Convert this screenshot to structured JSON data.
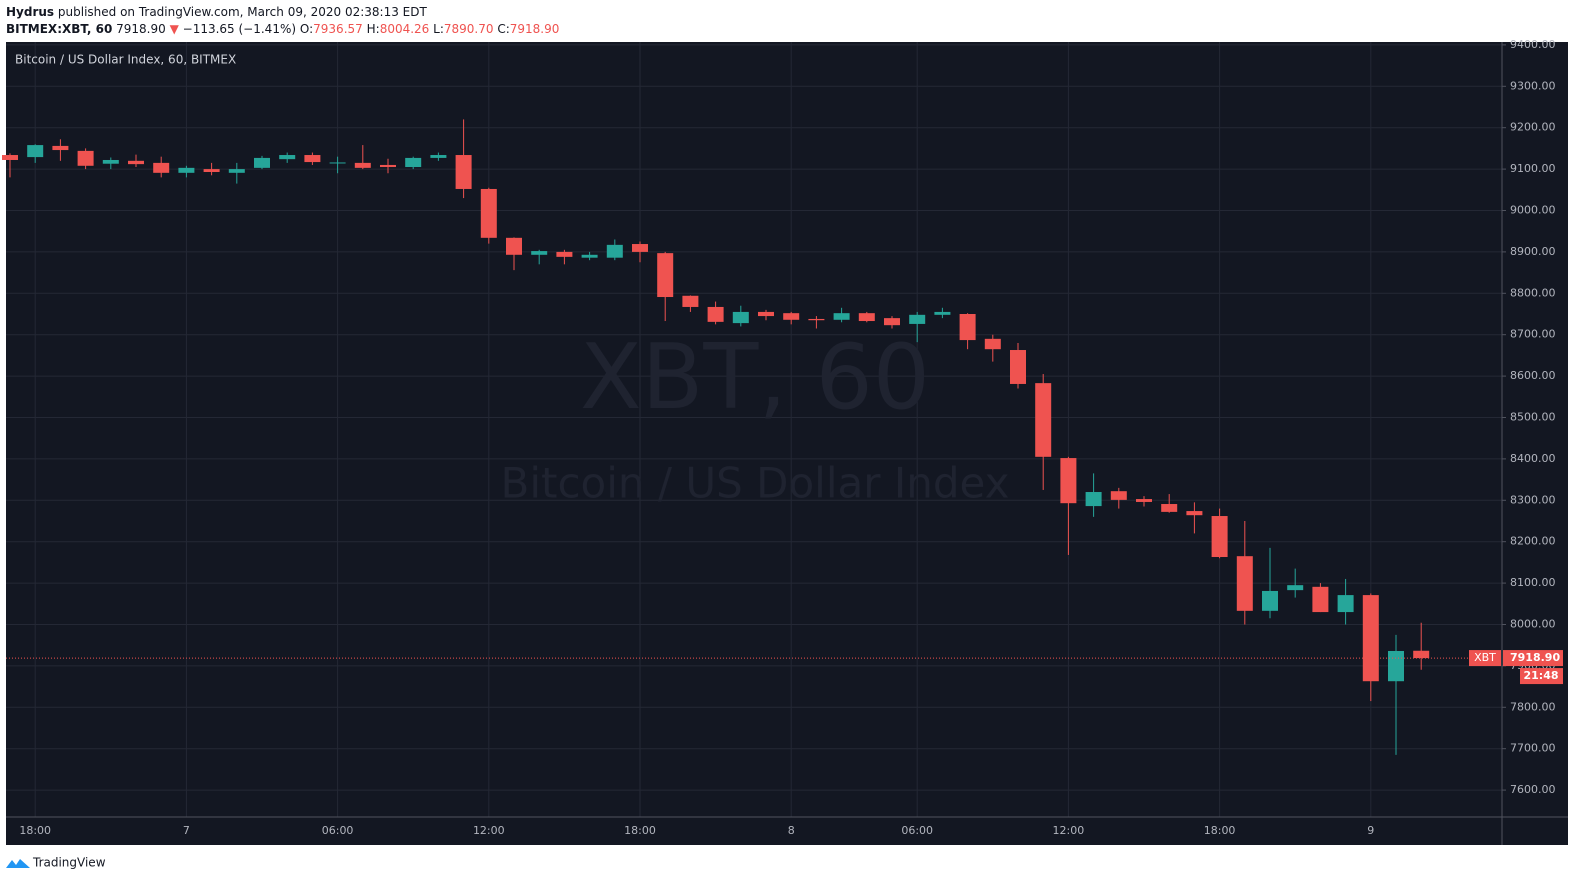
{
  "header": {
    "author": "Hydrus",
    "published": "published on TradingView.com, March 09, 2020 02:38:13 EDT",
    "symbol": "BITMEX:XBT, 60",
    "last": "7918.90",
    "arrow": "▼",
    "change": "−113.65 (−1.41%)",
    "ohlc": [
      {
        "label": "O:",
        "value": "7936.57"
      },
      {
        "label": "H:",
        "value": "8004.26"
      },
      {
        "label": "L:",
        "value": "7890.70"
      },
      {
        "label": "C:",
        "value": "7918.90"
      }
    ]
  },
  "chart_data": {
    "type": "candlestick",
    "title": "Bitcoin / US Dollar Index, 60, BITMEX",
    "watermark": [
      "XBT, 60",
      "Bitcoin / US Dollar Index"
    ],
    "up_color": "#26a69a",
    "down_color": "#ef5350",
    "grid": true,
    "categories": [
      null,
      "18:00",
      null,
      null,
      null,
      null,
      null,
      "7",
      null,
      null,
      null,
      null,
      null,
      "06:00",
      null,
      null,
      null,
      null,
      null,
      "12:00",
      null,
      null,
      null,
      null,
      null,
      "18:00",
      null,
      null,
      null,
      null,
      null,
      "8",
      null,
      null,
      null,
      null,
      "06:00",
      null,
      null,
      null,
      null,
      null,
      "12:00",
      null,
      null,
      null,
      null,
      null,
      "18:00",
      null,
      null,
      null,
      null,
      null,
      "9",
      null,
      null
    ],
    "open": [
      9134,
      9129,
      9156,
      9144,
      9113,
      9120,
      9115,
      9091,
      9100,
      9091,
      9103,
      9124,
      9134,
      9114,
      9115,
      9110,
      9105,
      9127,
      9134,
      9052,
      8934,
      8893,
      8900,
      8886,
      8886,
      8919,
      8897,
      8794,
      8767,
      8728,
      8755,
      8752,
      8738,
      8736,
      8752,
      8740,
      8726,
      8748,
      8750,
      8690,
      8663,
      8583,
      8402,
      8286,
      8322,
      8303,
      8291,
      8274,
      8262,
      8165,
      8033,
      8083,
      8091,
      8030,
      8071,
      7863,
      7936.57
    ],
    "high": [
      9138,
      9160,
      9172,
      9150,
      9128,
      9135,
      9130,
      9108,
      9115,
      9115,
      9132,
      9140,
      9140,
      9130,
      9158,
      9125,
      9130,
      9140,
      9220,
      9055,
      8935,
      8905,
      8905,
      8900,
      8930,
      8925,
      8900,
      8795,
      8780,
      8770,
      8760,
      8755,
      8745,
      8765,
      8755,
      8745,
      8755,
      8765,
      8752,
      8700,
      8680,
      8605,
      8405,
      8365,
      8330,
      8310,
      8315,
      8295,
      8280,
      8250,
      8185,
      8135,
      8100,
      8110,
      8075,
      7975,
      8004.26
    ],
    "low": [
      9080,
      9115,
      9120,
      9100,
      9100,
      9105,
      9080,
      9080,
      9085,
      9065,
      9100,
      9115,
      9110,
      9090,
      9100,
      9090,
      9100,
      9120,
      9030,
      8920,
      8856,
      8870,
      8870,
      8880,
      8880,
      8875,
      8733,
      8755,
      8725,
      8720,
      8735,
      8725,
      8715,
      8730,
      8730,
      8715,
      8682,
      8740,
      8665,
      8635,
      8570,
      8325,
      8168,
      8260,
      8280,
      8285,
      8270,
      8220,
      8160,
      8000,
      8015,
      8065,
      8030,
      8000,
      7815,
      7685,
      7890.7
    ],
    "close": [
      9122,
      9158,
      9146,
      9108,
      9122,
      9112,
      9091,
      9103,
      9093,
      9100,
      9127,
      9134,
      9117,
      9116,
      9103,
      9105,
      9127,
      9134,
      9052,
      8934,
      8893,
      8902,
      8888,
      8893,
      8917,
      8900,
      8791,
      8767,
      8731,
      8755,
      8745,
      8736,
      8735,
      8752,
      8733,
      8723,
      8748,
      8755,
      8687,
      8665,
      8581,
      8405,
      8293,
      8320,
      8301,
      8296,
      8272,
      8264,
      8163,
      8033,
      8081,
      8095,
      8030,
      8071,
      7863,
      7936,
      7918.9
    ],
    "ylim": [
      7535,
      9407
    ],
    "yticks": [
      {
        "value": 9400,
        "label": "9400.00"
      },
      {
        "value": 9300,
        "label": "9300.00"
      },
      {
        "value": 9200,
        "label": "9200.00"
      },
      {
        "value": 9100,
        "label": "9100.00"
      },
      {
        "value": 9000,
        "label": "9000.00"
      },
      {
        "value": 8900,
        "label": "8900.00"
      },
      {
        "value": 8800,
        "label": "8800.00"
      },
      {
        "value": 8700,
        "label": "8700.00"
      },
      {
        "value": 8600,
        "label": "8600.00"
      },
      {
        "value": 8500,
        "label": "8500.00"
      },
      {
        "value": 8400,
        "label": "8400.00"
      },
      {
        "value": 8300,
        "label": "8300.00"
      },
      {
        "value": 8200,
        "label": "8200.00"
      },
      {
        "value": 8100,
        "label": "8100.00"
      },
      {
        "value": 8000,
        "label": "8000.00"
      },
      {
        "value": 7900,
        "label": "7900.00"
      },
      {
        "value": 7800,
        "label": "7800.00"
      },
      {
        "value": 7700,
        "label": "7700.00"
      },
      {
        "value": 7600,
        "label": "7600.00"
      }
    ],
    "price_line": {
      "tag": "XBT",
      "value": 7918.9,
      "value_label": "7918.90",
      "countdown": "21:48"
    }
  },
  "footer": {
    "brand": "TradingView"
  }
}
